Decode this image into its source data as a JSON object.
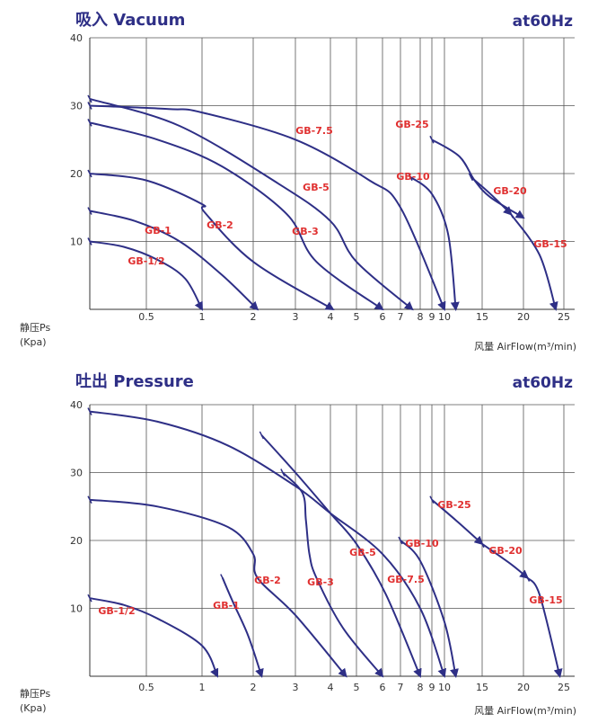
{
  "chart_data": [
    {
      "type": "line",
      "title": "吸入 Vacuum",
      "subtitle": "at60Hz",
      "ylabel": [
        "静压Ps",
        "(Kpa)"
      ],
      "xlabel": "风量 AirFlow(m³/min)",
      "ylim": [
        0,
        40
      ],
      "x_ticks": [
        "0.5",
        "1",
        "2",
        "3",
        "4",
        "5",
        "6",
        "7",
        "8",
        "9",
        "10",
        "15",
        "20",
        "25"
      ],
      "y_ticks": [
        "10",
        "20",
        "30",
        "40"
      ],
      "grid": true,
      "series": [
        {
          "name": "GB-1/2",
          "points": [
            [
              0,
              10
            ],
            [
              0.3,
              9.2
            ],
            [
              0.6,
              7.3
            ],
            [
              0.85,
              4.5
            ],
            [
              1.0,
              0
            ]
          ]
        },
        {
          "name": "GB-1",
          "points": [
            [
              0,
              14.5
            ],
            [
              0.4,
              13
            ],
            [
              0.8,
              10
            ],
            [
              1.4,
              5
            ],
            [
              2.1,
              0
            ]
          ]
        },
        {
          "name": "GB-2",
          "points": [
            [
              0,
              20
            ],
            [
              0.5,
              19
            ],
            [
              1.0,
              15.5
            ],
            [
              1.05,
              14.3
            ],
            [
              2.0,
              7
            ],
            [
              4.1,
              0
            ]
          ]
        },
        {
          "name": "GB-3",
          "points": [
            [
              0,
              27.5
            ],
            [
              0.6,
              25
            ],
            [
              1.4,
              21
            ],
            [
              2.8,
              14
            ],
            [
              3.6,
              7
            ],
            [
              6.0,
              0
            ]
          ]
        },
        {
          "name": "GB-5",
          "points": [
            [
              0,
              31
            ],
            [
              0.8,
              27
            ],
            [
              2.6,
              18.5
            ],
            [
              4.0,
              13
            ],
            [
              5.0,
              7
            ],
            [
              7.6,
              0
            ]
          ]
        },
        {
          "name": "GB-7.5",
          "points": [
            [
              0,
              30
            ],
            [
              0.7,
              29.5
            ],
            [
              1.0,
              29
            ],
            [
              3.0,
              25
            ],
            [
              5.5,
              19
            ],
            [
              7.0,
              15
            ],
            [
              10.0,
              0
            ]
          ]
        },
        {
          "name": "GB-10",
          "points": [
            [
              7.5,
              19.5
            ],
            [
              9.0,
              17
            ],
            [
              10.5,
              11
            ],
            [
              11.5,
              0
            ]
          ]
        },
        {
          "name": "GB-25",
          "points": [
            [
              9.0,
              25
            ],
            [
              12.0,
              22.5
            ],
            [
              14.0,
              19
            ],
            [
              16.0,
              16.5
            ],
            [
              20.0,
              13.5
            ]
          ]
        },
        {
          "name": "GB-20",
          "points": [
            [
              13.5,
              19.5
            ],
            [
              16.0,
              17
            ],
            [
              18.5,
              14
            ]
          ]
        },
        {
          "name": "GB-15",
          "points": [
            [
              18.5,
              14
            ],
            [
              22.0,
              8
            ],
            [
              24.0,
              0
            ]
          ]
        }
      ]
    },
    {
      "type": "line",
      "title": "吐出 Pressure",
      "subtitle": "at60Hz",
      "ylabel": [
        "静压Ps",
        "(Kpa)"
      ],
      "xlabel": "风量 AirFlow(m³/min)",
      "ylim": [
        0,
        40
      ],
      "x_ticks": [
        "0.5",
        "1",
        "2",
        "3",
        "4",
        "5",
        "6",
        "7",
        "8",
        "9",
        "10",
        "15",
        "20",
        "25"
      ],
      "y_ticks": [
        "10",
        "20",
        "30",
        "40"
      ],
      "grid": true,
      "series": [
        {
          "name": "GB-1/2",
          "points": [
            [
              0,
              11.5
            ],
            [
              0.3,
              10.5
            ],
            [
              0.6,
              8.5
            ],
            [
              1.0,
              4.5
            ],
            [
              1.3,
              0
            ]
          ]
        },
        {
          "name": "GB-1",
          "points": [
            [
              1.4,
              14.5
            ],
            [
              1.6,
              11
            ],
            [
              1.9,
              6
            ],
            [
              2.2,
              0
            ]
          ]
        },
        {
          "name": "GB-2",
          "points": [
            [
              0,
              26
            ],
            [
              0.6,
              25
            ],
            [
              1.5,
              22
            ],
            [
              2.0,
              18
            ],
            [
              2.1,
              14.5
            ],
            [
              3.0,
              9
            ],
            [
              4.6,
              0
            ]
          ]
        },
        {
          "name": "GB-3",
          "points": [
            [
              2.7,
              30
            ],
            [
              3.2,
              27
            ],
            [
              3.3,
              23
            ],
            [
              3.4,
              18
            ],
            [
              3.6,
              14.5
            ],
            [
              4.5,
              7
            ],
            [
              6.0,
              0
            ]
          ]
        },
        {
          "name": "GB-5",
          "points": [
            [
              2.2,
              35.5
            ],
            [
              3.0,
              30
            ],
            [
              4.0,
              24
            ],
            [
              5.0,
              19.5
            ],
            [
              6.2,
              12
            ],
            [
              8.0,
              0
            ]
          ]
        },
        {
          "name": "GB-7.5",
          "points": [
            [
              0,
              39
            ],
            [
              0.6,
              37.5
            ],
            [
              1.5,
              34
            ],
            [
              3.0,
              28
            ],
            [
              4.0,
              24
            ],
            [
              6.0,
              18
            ],
            [
              8.0,
              10
            ],
            [
              10.0,
              0
            ]
          ]
        },
        {
          "name": "GB-10",
          "points": [
            [
              7.0,
              20
            ],
            [
              8.0,
              17
            ],
            [
              10.0,
              8
            ],
            [
              11.5,
              0
            ]
          ]
        },
        {
          "name": "GB-25",
          "points": [
            [
              9.0,
              26
            ],
            [
              12.0,
              22.5
            ],
            [
              15.0,
              19.5
            ]
          ]
        },
        {
          "name": "GB-20",
          "points": [
            [
              15.0,
              19.5
            ],
            [
              18.5,
              16.5
            ],
            [
              20.5,
              14.5
            ]
          ]
        },
        {
          "name": "GB-15",
          "points": [
            [
              20.5,
              14.5
            ],
            [
              22.0,
              12
            ],
            [
              24.5,
              0
            ]
          ]
        }
      ]
    }
  ]
}
